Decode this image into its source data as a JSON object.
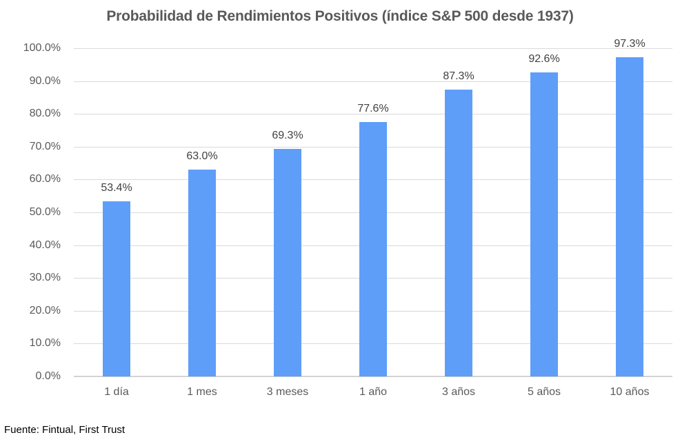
{
  "chart_data": {
    "type": "bar",
    "title": "Probabilidad de Rendimientos Positivos (índice S&P 500 desde 1937)",
    "categories": [
      "1 día",
      "1 mes",
      "3 meses",
      "1 año",
      "3 años",
      "5 años",
      "10 años"
    ],
    "values": [
      53.4,
      63.0,
      69.3,
      77.6,
      87.3,
      92.6,
      97.3
    ],
    "data_labels": [
      "53.4%",
      "63.0%",
      "69.3%",
      "77.6%",
      "87.3%",
      "92.6%",
      "97.3%"
    ],
    "y_ticks": [
      "100.0%",
      "90.0%",
      "80.0%",
      "70.0%",
      "60.0%",
      "50.0%",
      "40.0%",
      "30.0%",
      "20.0%",
      "10.0%",
      "0.0%"
    ],
    "ylim": [
      0,
      100
    ],
    "grid": true,
    "legend": "none",
    "bar_color": "#5e9ef8",
    "gridline_color": "#d9d9d9",
    "axis_line_color": "#d2d2d2",
    "title_color": "#595959",
    "label_color": "#404040",
    "tick_color": "#595959"
  },
  "source_note": "Fuente: Fintual, First Trust"
}
